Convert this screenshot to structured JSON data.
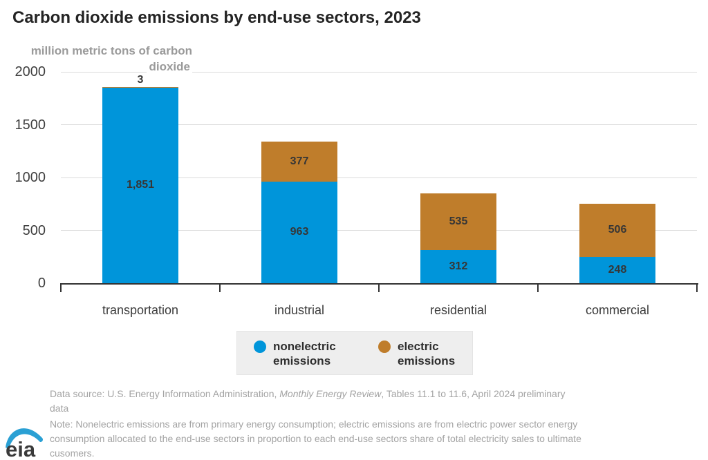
{
  "chart_data": {
    "type": "bar",
    "stacked": true,
    "title": "Carbon dioxide emissions by end-use sectors, 2023",
    "ylabel": "million metric tons of carbon dioxide",
    "ylabel_lines": [
      "million metric tons of carbon",
      "dioxide"
    ],
    "ylim": [
      0,
      2000
    ],
    "yticks": [
      0,
      500,
      1000,
      1500,
      2000
    ],
    "grid": "horizontal-light",
    "legend_position": "bottom-center",
    "categories": [
      "transportation",
      "industrial",
      "residential",
      "commercial"
    ],
    "series": [
      {
        "name": "nonelectric emissions",
        "color": "#0095da",
        "values": [
          1851,
          963,
          312,
          248
        ],
        "labels": [
          "1,851",
          "963",
          "312",
          "248"
        ]
      },
      {
        "name": "electric emissions",
        "color": "#bf7d2b",
        "values": [
          3,
          377,
          535,
          506
        ],
        "labels": [
          "3",
          "377",
          "535",
          "506"
        ]
      }
    ]
  },
  "legend": {
    "items": [
      {
        "label": "nonelectric emissions",
        "color": "#0095da"
      },
      {
        "label": "electric emissions",
        "color": "#bf7d2b"
      }
    ]
  },
  "footer": {
    "source_prefix": "Data source: U.S. Energy Information Administration, ",
    "source_italic": "Monthly Energy Review",
    "source_suffix": ", Tables 11.1 to 11.6, April 2024 preliminary",
    "source_line2": "data",
    "note_line1": "Note: Nonelectric emissions are from primary energy consumption; electric emissions are from electric power sector energy",
    "note_line2": "consumption allocated to the end-use sectors in proportion to each end-use sectors share of total electricity sales to ultimate",
    "note_line3": "cusomers."
  },
  "logo": {
    "text": "eia",
    "swoosh_color": "#2aa0d4"
  }
}
